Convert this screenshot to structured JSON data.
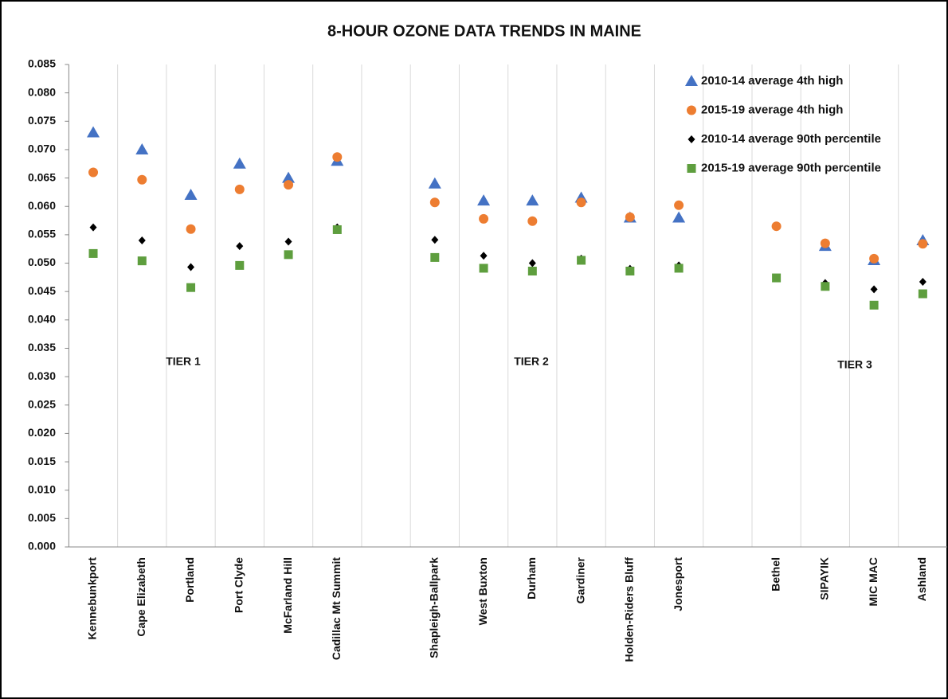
{
  "chart_data": {
    "type": "scatter",
    "title": "8-HOUR OZONE DATA TRENDS IN MAINE",
    "categories": [
      "Kennebunkport",
      "Cape Elizabeth",
      "Portland",
      "Port Clyde",
      "McFarland Hill",
      "Cadillac Mt Summit",
      null,
      "Shapleigh-Ballpark",
      "West Buxton",
      "Durham",
      "Gardiner",
      "Holden-Riders Bluff",
      "Jonesport",
      null,
      "Bethel",
      "SIPAYIK",
      "MIC MAC",
      "Ashland"
    ],
    "series": [
      {
        "name": "2010-14 average 4th high",
        "color": "#4472c4",
        "marker": "triangle",
        "values": [
          0.073,
          0.07,
          0.062,
          0.0675,
          0.065,
          0.068,
          null,
          0.064,
          0.061,
          0.061,
          0.0615,
          0.058,
          0.058,
          null,
          null,
          0.053,
          0.0505,
          0.054
        ]
      },
      {
        "name": "2015-19 average 4th high",
        "color": "#ed7d31",
        "marker": "circle",
        "values": [
          0.066,
          0.0647,
          0.056,
          0.063,
          0.0638,
          0.0687,
          null,
          0.0607,
          0.0578,
          0.0574,
          0.0607,
          0.0581,
          0.0602,
          null,
          0.0565,
          0.0535,
          0.0508,
          0.0534
        ]
      },
      {
        "name": "2010-14 average 90th percentile",
        "color": "#000000",
        "marker": "diamond",
        "values": [
          0.0563,
          0.054,
          0.0493,
          0.053,
          0.0538,
          0.0563,
          null,
          0.0541,
          0.0513,
          0.05,
          0.0508,
          0.049,
          0.0496,
          null,
          null,
          0.0465,
          0.0454,
          0.0467
        ]
      },
      {
        "name": "2015-19 average 90th percentile",
        "color": "#5e9e3e",
        "marker": "square",
        "values": [
          0.0517,
          0.0504,
          0.0457,
          0.0496,
          0.0515,
          0.0559,
          null,
          0.051,
          0.0491,
          0.0486,
          0.0505,
          0.0486,
          0.0491,
          null,
          0.0474,
          0.0459,
          0.0426,
          0.0446
        ]
      }
    ],
    "annotations": [
      "TIER 1",
      "TIER 2",
      "TIER 3"
    ],
    "ylim": [
      0,
      0.085
    ],
    "yticks": [
      {
        "value": 0,
        "label": "0.000"
      },
      {
        "value": 0.005,
        "label": "0.005"
      },
      {
        "value": 0.01,
        "label": "0.010"
      },
      {
        "value": 0.015,
        "label": "0.015"
      },
      {
        "value": 0.02,
        "label": "0.020"
      },
      {
        "value": 0.025,
        "label": "0.025"
      },
      {
        "value": 0.03,
        "label": "0.030"
      },
      {
        "value": 0.035,
        "label": "0.035"
      },
      {
        "value": 0.04,
        "label": "0.040"
      },
      {
        "value": 0.045,
        "label": "0.045"
      },
      {
        "value": 0.05,
        "label": "0.050"
      },
      {
        "value": 0.055,
        "label": "0.055"
      },
      {
        "value": 0.06,
        "label": "0.060"
      },
      {
        "value": 0.065,
        "label": "0.065"
      },
      {
        "value": 0.07,
        "label": "0.070"
      },
      {
        "value": 0.075,
        "label": "0.075"
      },
      {
        "value": 0.08,
        "label": "0.080"
      },
      {
        "value": 0.085,
        "label": "0.085"
      }
    ],
    "grid": "x",
    "legend": "upper right"
  }
}
